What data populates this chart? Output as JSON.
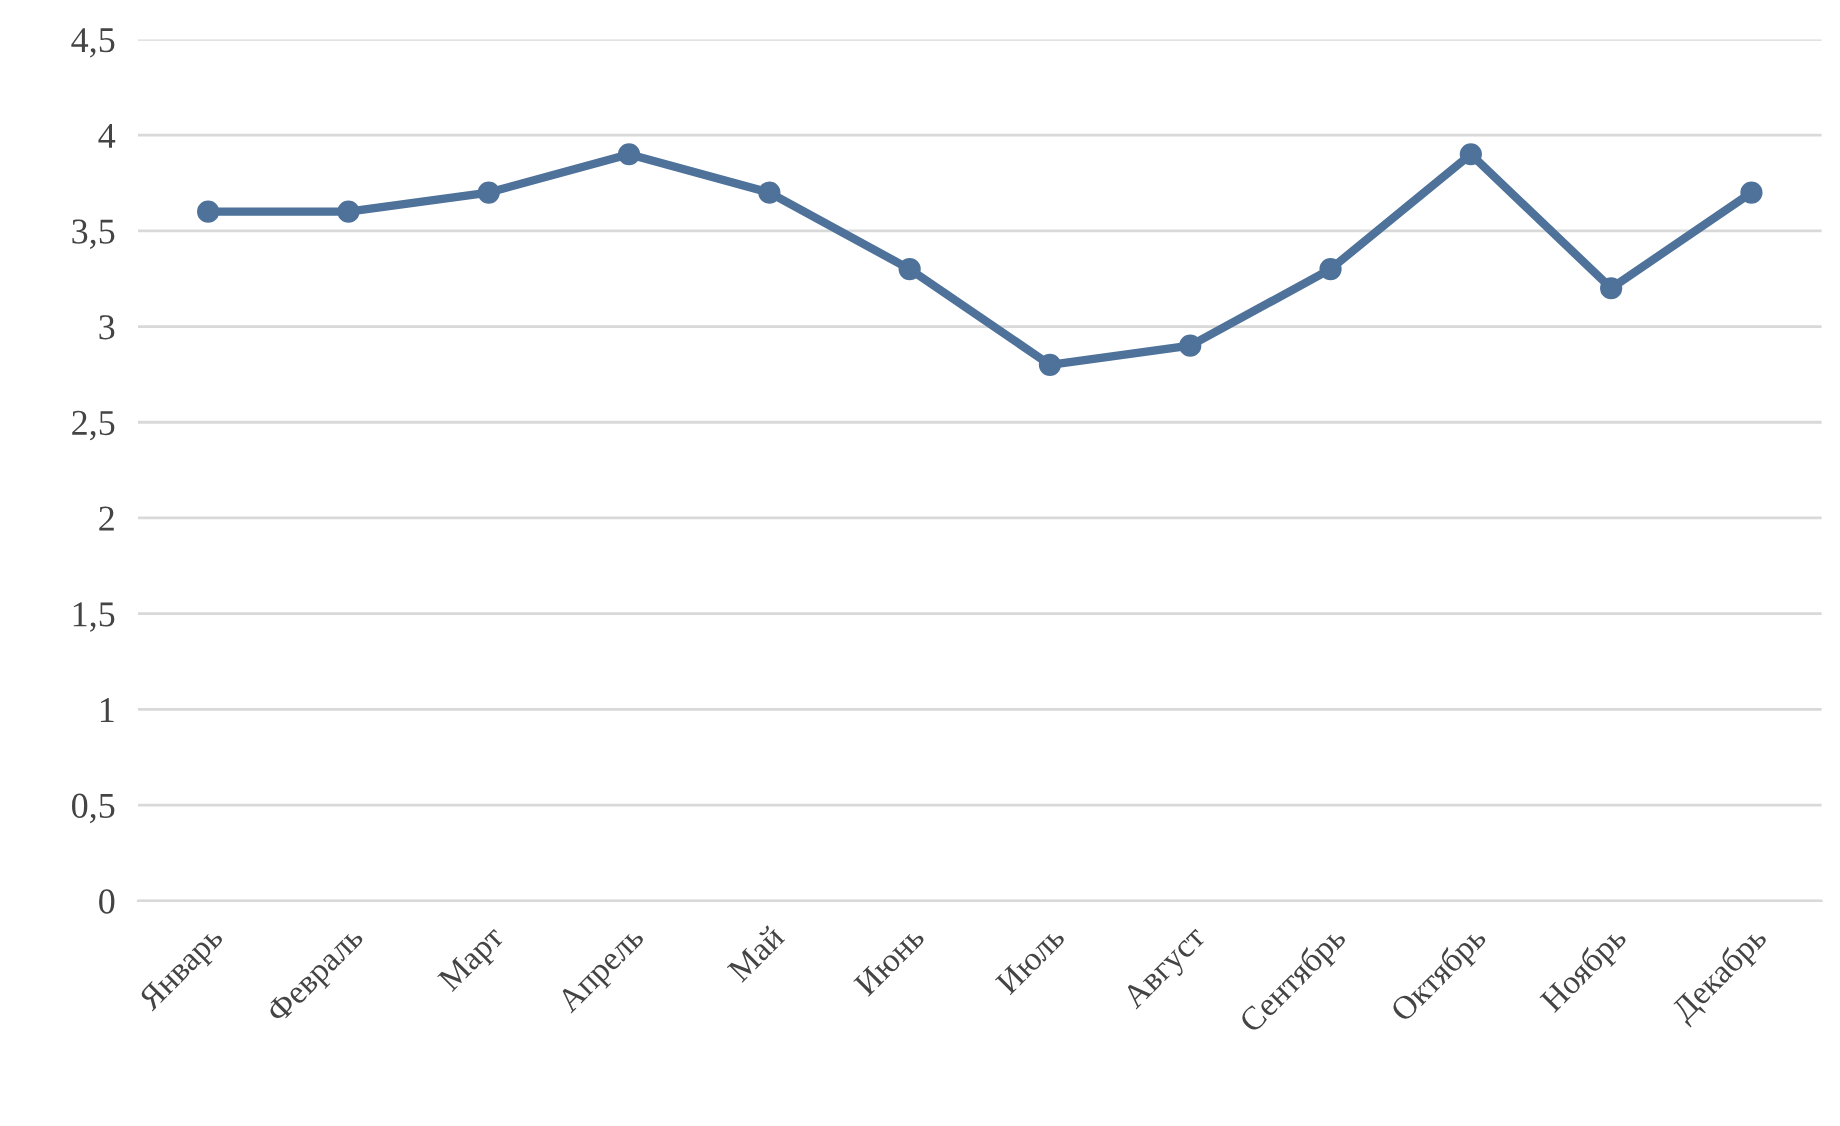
{
  "chart_data": {
    "type": "line",
    "categories": [
      "Январь",
      "Февраль",
      "Март",
      "Апрель",
      "Май",
      "Июнь",
      "Июль",
      "Август",
      "Сентябрь",
      "Октябрь",
      "Ноябрь",
      "Декабрь"
    ],
    "series": [
      {
        "color": "#4e729a",
        "values": [
          3.6,
          3.6,
          3.7,
          3.9,
          3.7,
          3.3,
          2.8,
          2.9,
          3.3,
          3.9,
          3.2,
          3.7
        ]
      }
    ],
    "ylim": [
      0,
      4.5
    ],
    "yticks": [
      0,
      {
        "value": 0.5,
        "label": "0,5"
      },
      1,
      {
        "value": 1.5,
        "label": "1,5"
      },
      2,
      {
        "value": 2.5,
        "label": "2,5"
      },
      3,
      {
        "value": 3.5,
        "label": "3,5"
      },
      4,
      {
        "value": 4.5,
        "label": "4,5"
      }
    ],
    "grid": "y",
    "marker": "circle",
    "line_style": "solid",
    "legend": false
  }
}
